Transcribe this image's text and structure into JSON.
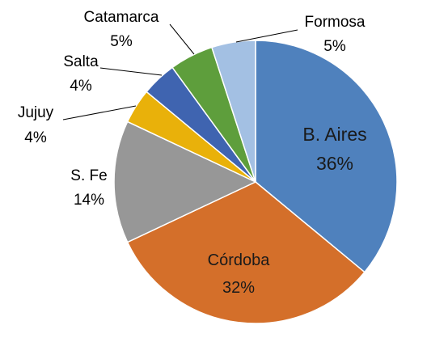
{
  "chart_data": {
    "type": "pie",
    "title": "",
    "slices": [
      {
        "label": "B. Aires",
        "value": 36,
        "display": "36%",
        "color": "#4F81BD"
      },
      {
        "label": "Córdoba",
        "value": 32,
        "display": "32%",
        "color": "#D46F2A"
      },
      {
        "label": "S. Fe",
        "value": 14,
        "display": "14%",
        "color": "#979797"
      },
      {
        "label": "Jujuy",
        "value": 4,
        "display": "4%",
        "color": "#E9B10A"
      },
      {
        "label": "Salta",
        "value": 4,
        "display": "4%",
        "color": "#3F64B0"
      },
      {
        "label": "Catamarca",
        "value": 5,
        "display": "5%",
        "color": "#5E9E3C"
      },
      {
        "label": "Formosa",
        "value": 5,
        "display": "5%",
        "color": "#A3C0E3"
      }
    ],
    "start_angle": "12 o'clock",
    "direction": "clockwise",
    "legend": "none",
    "data_labels": "category name and percentage"
  }
}
